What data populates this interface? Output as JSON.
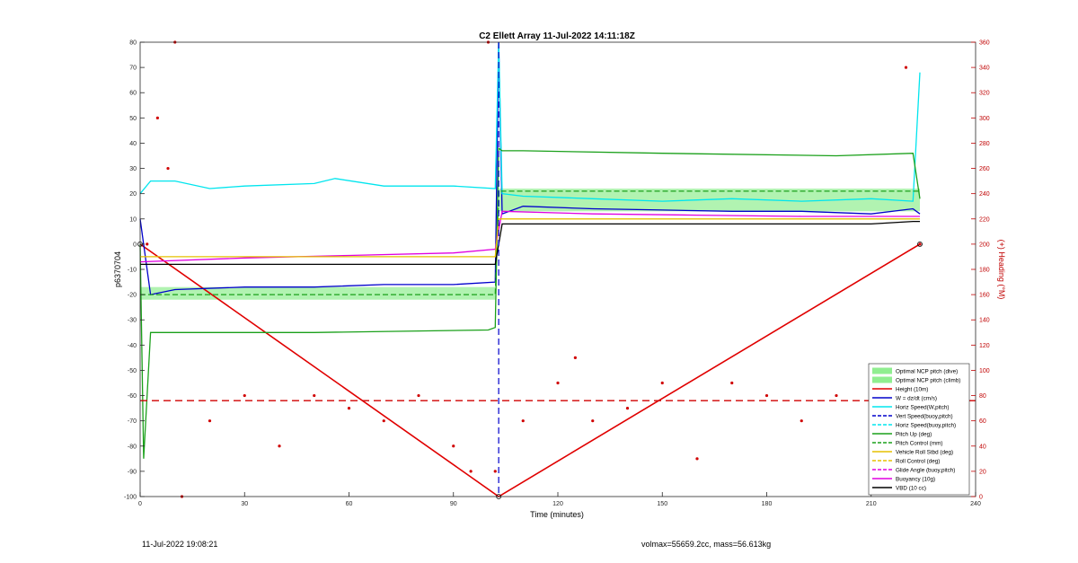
{
  "chart_data": {
    "type": "line",
    "title": "C2 Ellett Array 11-Jul-2022 14:11:18Z",
    "xlabel": "Time (minutes)",
    "ylabel": "p6370704",
    "y2label": "(+) Heading (°M)",
    "xlim": [
      0,
      240
    ],
    "ylim": [
      -100,
      80
    ],
    "y2lim": [
      0,
      360
    ],
    "xticks": [
      0,
      30,
      60,
      90,
      120,
      150,
      180,
      210,
      240
    ],
    "yticks": [
      -100,
      -90,
      -80,
      -70,
      -60,
      -50,
      -40,
      -30,
      -20,
      -10,
      0,
      10,
      20,
      30,
      40,
      50,
      60,
      70,
      80
    ],
    "y2ticks": [
      0,
      20,
      40,
      60,
      80,
      100,
      120,
      140,
      160,
      180,
      200,
      220,
      240,
      260,
      280,
      300,
      320,
      340,
      360
    ],
    "grid": false,
    "legend_position": "lower-right",
    "legend": [
      {
        "label": "Optimal NCP pitch (dive)",
        "color": "#90ee90",
        "style": "patch"
      },
      {
        "label": "Optimal NCP pitch (climb)",
        "color": "#90ee90",
        "style": "patch"
      },
      {
        "label": "Height (10m)",
        "color": "#e00000",
        "style": "solid"
      },
      {
        "label": "W = dz/dt (cm/s)",
        "color": "#0000cc",
        "style": "solid"
      },
      {
        "label": "Horiz Speed(W,pitch)",
        "color": "#00e5ee",
        "style": "solid"
      },
      {
        "label": "Vert Speed(buoy,pitch)",
        "color": "#0000cc",
        "style": "dashed"
      },
      {
        "label": "Horiz Speed(buoy,pitch)",
        "color": "#00e5ee",
        "style": "dashed"
      },
      {
        "label": "Pitch Up (deg)",
        "color": "#1aa01a",
        "style": "solid"
      },
      {
        "label": "Pitch Control (mm)",
        "color": "#1aa01a",
        "style": "dashed"
      },
      {
        "label": "Vehicle Roll Stbd (deg)",
        "color": "#e6c000",
        "style": "solid"
      },
      {
        "label": "Roll Control (deg)",
        "color": "#e6c000",
        "style": "dashed"
      },
      {
        "label": "Glide Angle (buoy,pitch)",
        "color": "#e000e0",
        "style": "dashed"
      },
      {
        "label": "Buoyancy (10g)",
        "color": "#e000e0",
        "style": "solid"
      },
      {
        "label": "VBD (10 cc)",
        "color": "#000000",
        "style": "solid"
      }
    ],
    "series": [
      {
        "name": "Height (10m)",
        "axis": "left",
        "color": "#e00000",
        "x": [
          0,
          103,
          224
        ],
        "y": [
          0,
          -100,
          0
        ]
      },
      {
        "name": "W = dz/dt (cm/s)",
        "axis": "left",
        "color": "#0000cc",
        "x": [
          0,
          3,
          10,
          30,
          50,
          70,
          90,
          102,
          103,
          104,
          110,
          130,
          150,
          170,
          190,
          210,
          222,
          224
        ],
        "y": [
          10,
          -20,
          -18,
          -17,
          -17,
          -16,
          -16,
          -15,
          80,
          12,
          15,
          14,
          13.5,
          13,
          13,
          12,
          14,
          12
        ]
      },
      {
        "name": "Horiz Speed(W,pitch)",
        "axis": "left",
        "color": "#00e5ee",
        "x": [
          0,
          3,
          10,
          20,
          30,
          50,
          56,
          70,
          90,
          102,
          103,
          104,
          110,
          130,
          150,
          170,
          190,
          210,
          222,
          224
        ],
        "y": [
          20,
          25,
          25,
          22,
          23,
          24,
          26,
          23,
          23,
          22,
          80,
          20,
          19,
          18,
          17,
          18,
          17,
          18,
          17,
          68
        ]
      },
      {
        "name": "Pitch Up (deg)",
        "axis": "left",
        "color": "#1aa01a",
        "x": [
          0,
          1,
          3,
          10,
          50,
          100,
          102,
          103,
          104,
          110,
          150,
          200,
          222,
          224
        ],
        "y": [
          0,
          -85,
          -35,
          -35,
          -35,
          -34,
          -33,
          38,
          37,
          37,
          36,
          35,
          36,
          18
        ]
      },
      {
        "name": "Pitch Control (mm)",
        "axis": "left",
        "color": "#1aa01a",
        "x": [
          0,
          102,
          103,
          224
        ],
        "y": [
          -20,
          -20,
          21,
          21
        ]
      },
      {
        "name": "Buoyancy (10g)",
        "axis": "left",
        "color": "#e000e0",
        "x": [
          0,
          30,
          60,
          90,
          102,
          104,
          130,
          160,
          190,
          210,
          224
        ],
        "y": [
          -7,
          -5.5,
          -4.5,
          -3.5,
          -2,
          13,
          12,
          11.5,
          11,
          11,
          11
        ]
      },
      {
        "name": "VBD (10 cc)",
        "axis": "left",
        "color": "#000000",
        "x": [
          0,
          102,
          104,
          210,
          222,
          224
        ],
        "y": [
          -8,
          -8,
          8,
          8,
          9,
          9
        ]
      },
      {
        "name": "Vehicle Roll Stbd (deg)",
        "axis": "left",
        "color": "#e6c000",
        "x": [
          0,
          102,
          103,
          224
        ],
        "y": [
          -5,
          -5,
          10,
          10
        ]
      },
      {
        "name": "Heading",
        "axis": "right",
        "color": "#d00000",
        "x": [
          2,
          5,
          8,
          10,
          12,
          20,
          30,
          40,
          50,
          60,
          70,
          80,
          90,
          95,
          100,
          102,
          110,
          120,
          125,
          130,
          140,
          150,
          160,
          170,
          180,
          190,
          200,
          210,
          215,
          220,
          224
        ],
        "y": [
          200,
          300,
          260,
          360,
          0,
          60,
          80,
          40,
          80,
          70,
          60,
          80,
          40,
          20,
          360,
          20,
          60,
          90,
          110,
          60,
          70,
          90,
          30,
          90,
          80,
          60,
          80,
          100,
          60,
          340,
          200
        ]
      }
    ]
  },
  "footer": {
    "timestamp": "11-Jul-2022 19:08:21",
    "mass_info": "volmax=55659.2cc, mass=56.613kg"
  }
}
